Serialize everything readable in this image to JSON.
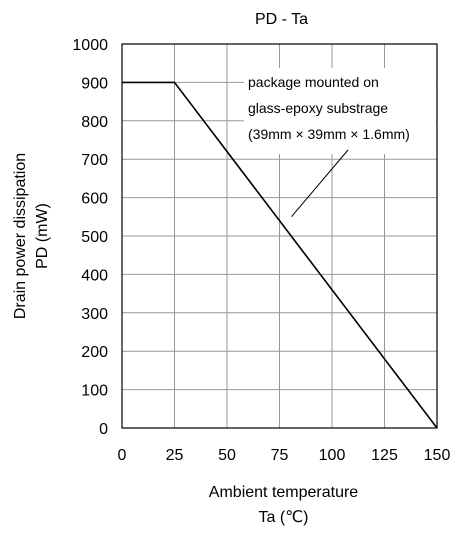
{
  "chart_data": {
    "type": "line",
    "title": "PD - Ta",
    "xlabel": [
      "Ambient temperature",
      "Ta (℃)"
    ],
    "ylabel": [
      "Drain power dissipation",
      "PD (mW)"
    ],
    "xlim": [
      0,
      150
    ],
    "ylim": [
      0,
      1000
    ],
    "xticks": [
      0,
      25,
      50,
      75,
      100,
      125,
      150
    ],
    "yticks": [
      0,
      100,
      200,
      300,
      400,
      500,
      600,
      700,
      800,
      900,
      1000
    ],
    "grid": true,
    "series": [
      {
        "x": [
          0,
          25,
          150
        ],
        "y": [
          900,
          900,
          0
        ]
      }
    ],
    "annotation": {
      "lines": [
        "package mounted on",
        "glass-epoxy substrage",
        "(39mm × 39mm × 1.6mm)"
      ],
      "points_to": {
        "x": 75,
        "y": 540
      }
    }
  }
}
